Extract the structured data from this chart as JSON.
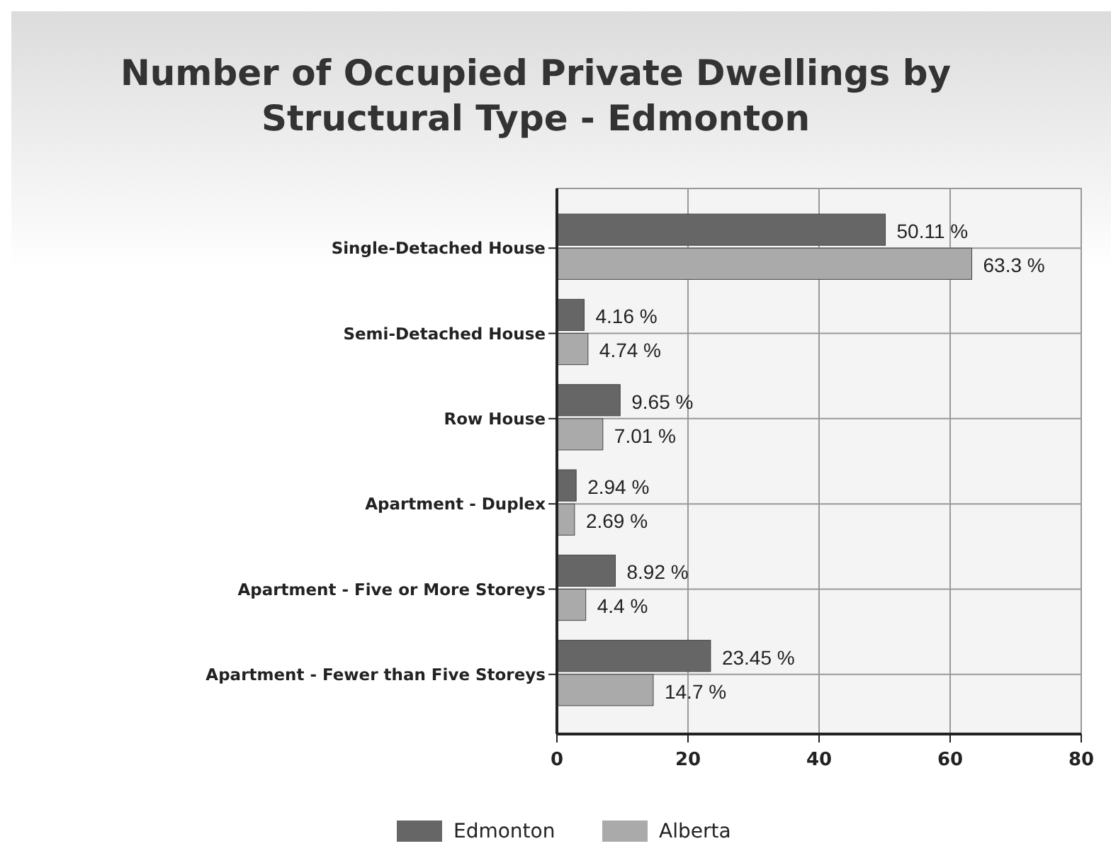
{
  "chart_data": {
    "type": "bar",
    "orientation": "horizontal",
    "title": "Number of Occupied Private Dwellings by Structural Type - Edmonton",
    "categories": [
      "Single-Detached House",
      "Semi-Detached House",
      "Row House",
      "Apartment - Duplex",
      "Apartment - Five or More Storeys",
      "Apartment - Fewer than Five Storeys"
    ],
    "series": [
      {
        "name": "Edmonton",
        "color": "#666666",
        "values": [
          50.11,
          4.16,
          9.65,
          2.94,
          8.92,
          23.45
        ],
        "value_labels": [
          "50.11 %",
          "4.16 %",
          "9.65 %",
          "2.94 %",
          "8.92 %",
          "23.45 %"
        ]
      },
      {
        "name": "Alberta",
        "color": "#aaaaaa",
        "values": [
          63.3,
          4.74,
          7.01,
          2.69,
          4.4,
          14.7
        ],
        "value_labels": [
          "63.3 %",
          "4.74 %",
          "7.01 %",
          "2.69 %",
          "4.4 %",
          "14.7 %"
        ]
      }
    ],
    "xlim": [
      0,
      80
    ],
    "xticks": [
      0,
      20,
      40,
      60,
      80
    ],
    "grid": true,
    "legend": "bottom"
  }
}
